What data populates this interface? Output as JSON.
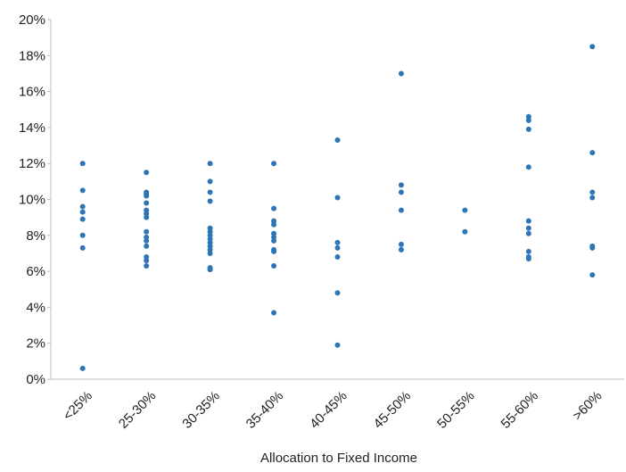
{
  "chart_data": {
    "type": "strip",
    "x_label": "Allocation to Fixed Income",
    "categories": [
      "<25%",
      "25-30%",
      "30-35%",
      "35-40%",
      "40-45%",
      "45-50%",
      "50-55%",
      "55-60%",
      ">60%"
    ],
    "values": [
      [
        12.0,
        10.5,
        9.6,
        9.3,
        8.9,
        8.0,
        7.3,
        0.6
      ],
      [
        11.5,
        10.4,
        10.3,
        10.2,
        9.8,
        9.4,
        9.2,
        9.0,
        8.2,
        7.9,
        7.7,
        7.4,
        6.8,
        6.6,
        6.3
      ],
      [
        12.0,
        11.0,
        10.4,
        9.9,
        8.4,
        8.2,
        8.0,
        7.8,
        7.6,
        7.4,
        7.2,
        7.0,
        6.2,
        6.1
      ],
      [
        12.0,
        9.5,
        8.8,
        8.6,
        8.1,
        7.9,
        7.7,
        7.2,
        7.1,
        6.3,
        3.7
      ],
      [
        13.3,
        10.1,
        7.6,
        7.3,
        6.8,
        4.8,
        1.9
      ],
      [
        17.0,
        10.8,
        10.4,
        9.4,
        7.5,
        7.2
      ],
      [
        9.4,
        8.2
      ],
      [
        14.6,
        14.4,
        13.9,
        11.8,
        8.8,
        8.4,
        8.1,
        7.1,
        6.8,
        6.7
      ],
      [
        18.5,
        12.6,
        10.4,
        10.1,
        7.4,
        7.3,
        5.8
      ]
    ],
    "color": "#2e75b6",
    "ylim": [
      0,
      20
    ],
    "yticks": [
      {
        "value": 0,
        "label": "0%"
      },
      {
        "value": 2,
        "label": "2%"
      },
      {
        "value": 4,
        "label": "4%"
      },
      {
        "value": 6,
        "label": "6%"
      },
      {
        "value": 8,
        "label": "8%"
      },
      {
        "value": 10,
        "label": "10%"
      },
      {
        "value": 12,
        "label": "12%"
      },
      {
        "value": 14,
        "label": "14%"
      },
      {
        "value": 16,
        "label": "16%"
      },
      {
        "value": 18,
        "label": "18%"
      },
      {
        "value": 20,
        "label": "20%"
      }
    ],
    "grid": false
  }
}
